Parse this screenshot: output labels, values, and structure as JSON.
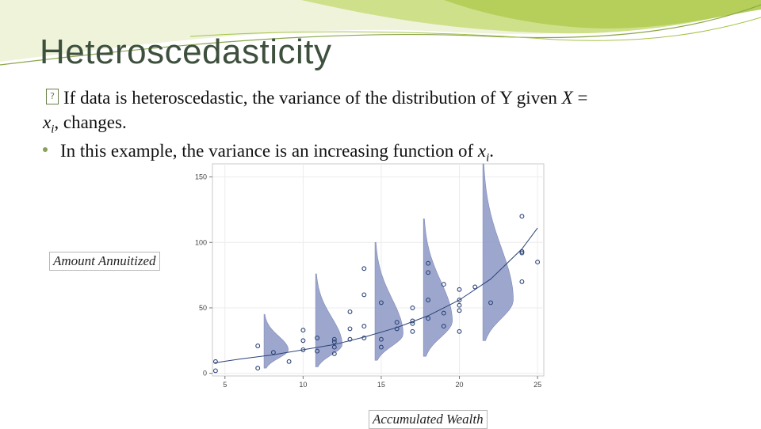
{
  "slide": {
    "title": "Heteroscedasticity",
    "bullet1_a": "If data is heteroscedastic, the variance of the distribution of Y given ",
    "bullet1_b": "X",
    "bullet1_c": " =",
    "bullet1_d": "x",
    "bullet1_e": "i",
    "bullet1_f": ", changes.",
    "bullet2_a": "In this example, the variance is an increasing function of ",
    "bullet2_b": "x",
    "bullet2_c": "i",
    "bullet2_d": ".",
    "bullet_glyph": "?",
    "colors": {
      "title": "#3d4f3d",
      "accent_green": "#a6c24a",
      "density_fill": "#8c98c4",
      "points": "#2b4378"
    }
  },
  "chart_data": {
    "type": "scatter",
    "xlabel": "Accumulated Wealth",
    "ylabel": "Amount Annuitized",
    "xlim": [
      4.2,
      25.4
    ],
    "ylim": [
      -2,
      160
    ],
    "xticks": [
      5,
      10,
      15,
      20,
      25
    ],
    "yticks": [
      0,
      50,
      100,
      150
    ],
    "grid": true,
    "points": [
      [
        4.4,
        9
      ],
      [
        4.4,
        2
      ],
      [
        7.1,
        21
      ],
      [
        7.1,
        4
      ],
      [
        8.1,
        16
      ],
      [
        9.1,
        9
      ],
      [
        10.0,
        33
      ],
      [
        10.0,
        25
      ],
      [
        10.0,
        18
      ],
      [
        10.9,
        27
      ],
      [
        10.9,
        17
      ],
      [
        12.0,
        26
      ],
      [
        12.0,
        24
      ],
      [
        12.0,
        20
      ],
      [
        12.0,
        15
      ],
      [
        13.0,
        47
      ],
      [
        13.0,
        34
      ],
      [
        13.0,
        26
      ],
      [
        13.9,
        80
      ],
      [
        13.9,
        60
      ],
      [
        13.9,
        36
      ],
      [
        13.9,
        27
      ],
      [
        15.0,
        54
      ],
      [
        15.0,
        26
      ],
      [
        15.0,
        20
      ],
      [
        16.0,
        39
      ],
      [
        16.0,
        34
      ],
      [
        17.0,
        50
      ],
      [
        17.0,
        40
      ],
      [
        17.0,
        38
      ],
      [
        17.0,
        32
      ],
      [
        18.0,
        84
      ],
      [
        18.0,
        77
      ],
      [
        18.0,
        56
      ],
      [
        18.0,
        42
      ],
      [
        19.0,
        68
      ],
      [
        19.0,
        46
      ],
      [
        19.0,
        36
      ],
      [
        20.0,
        64
      ],
      [
        20.0,
        56
      ],
      [
        20.0,
        52
      ],
      [
        20.0,
        48
      ],
      [
        20.0,
        32
      ],
      [
        21.0,
        66
      ],
      [
        22.0,
        54
      ],
      [
        24.0,
        120
      ],
      [
        24.0,
        93
      ],
      [
        24.0,
        92
      ],
      [
        24.0,
        70
      ],
      [
        25.0,
        85
      ]
    ],
    "trend_curve": {
      "x": [
        4.3,
        6,
        8,
        10,
        12,
        14,
        16,
        18,
        20,
        22,
        24,
        25
      ],
      "y": [
        8,
        11,
        14,
        18,
        22,
        28,
        35,
        44,
        56,
        72,
        95,
        111
      ]
    },
    "densities": [
      {
        "x": 7.5,
        "y_low": 4,
        "y_high": 45,
        "peak_y": 18,
        "width": 1.55
      },
      {
        "x": 10.8,
        "y_low": 5,
        "y_high": 76,
        "peak_y": 22,
        "width": 1.7
      },
      {
        "x": 14.6,
        "y_low": 10,
        "y_high": 100,
        "peak_y": 30,
        "width": 1.8
      },
      {
        "x": 17.7,
        "y_low": 13,
        "y_high": 118,
        "peak_y": 40,
        "width": 1.85
      },
      {
        "x": 21.5,
        "y_low": 25,
        "y_high": 160,
        "peak_y": 56,
        "width": 1.95
      }
    ]
  }
}
